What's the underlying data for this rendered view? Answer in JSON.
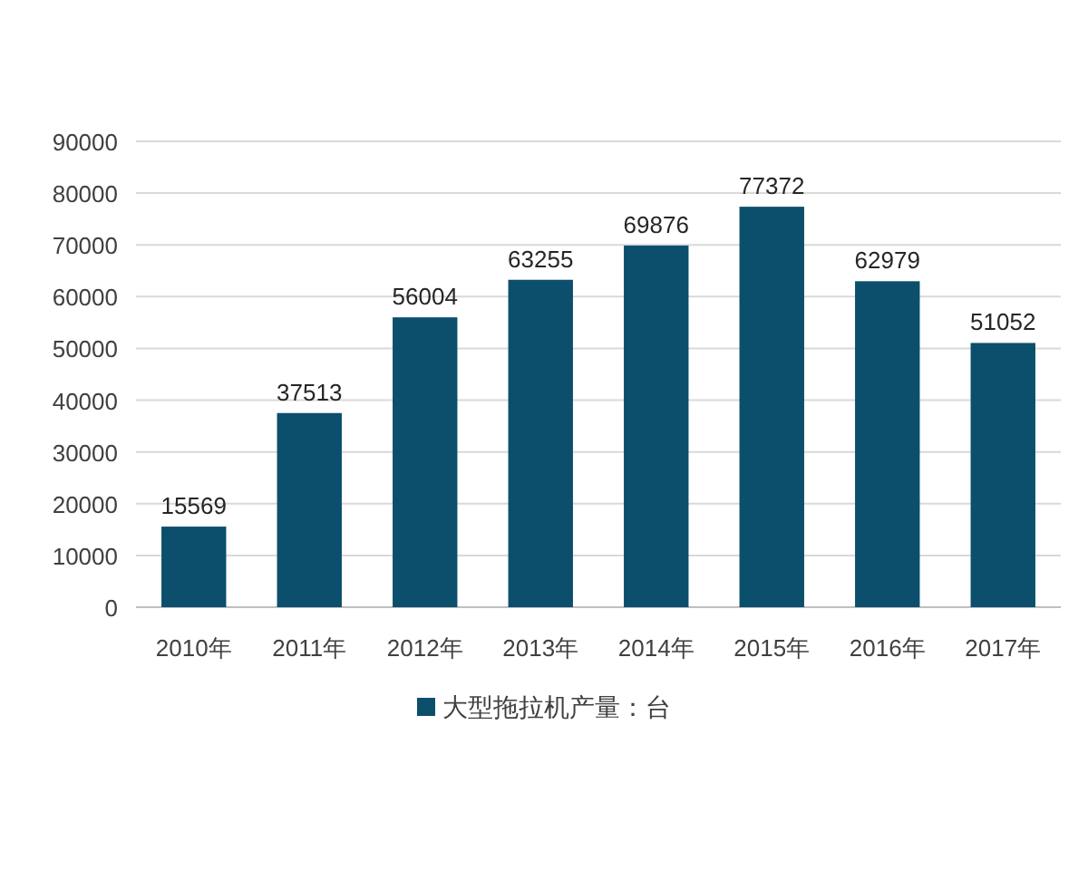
{
  "chart_data": {
    "type": "bar",
    "categories": [
      "2010年",
      "2011年",
      "2012年",
      "2013年",
      "2014年",
      "2015年",
      "2016年",
      "2017年"
    ],
    "series": [
      {
        "name": "大型拖拉机产量：台",
        "color": "#0b4f6c",
        "values": [
          15569,
          37513,
          56004,
          63255,
          69876,
          77372,
          62979,
          51052
        ]
      }
    ],
    "ylim": [
      0,
      90000
    ],
    "yticks": [
      0,
      10000,
      20000,
      30000,
      40000,
      50000,
      60000,
      70000,
      80000,
      90000
    ],
    "grid": "y",
    "legend": "bottom",
    "data_labels": true
  }
}
